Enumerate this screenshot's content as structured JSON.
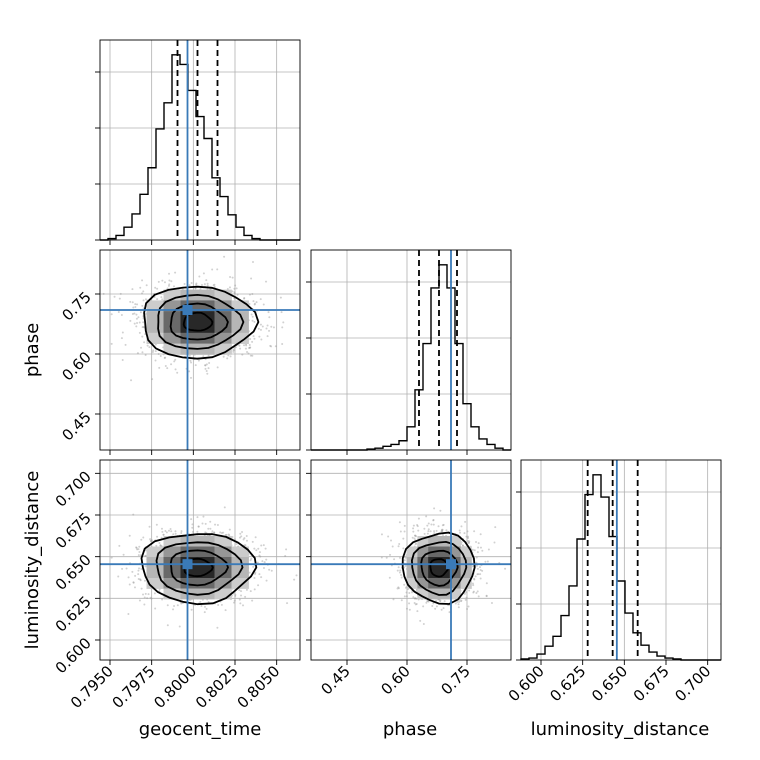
{
  "chart_data": {
    "type": "corner",
    "parameters": [
      "geocent_time",
      "phase",
      "luminosity_distance"
    ],
    "labels": {
      "geocent_time": "geocent_time",
      "phase": "phase",
      "luminosity_distance": "luminosity_distance"
    },
    "ranges": {
      "geocent_time": [
        0.7944,
        0.8064
      ],
      "phase": [
        0.36,
        0.86
      ],
      "luminosity_distance": [
        0.588,
        0.708
      ]
    },
    "ticks": {
      "geocent_time": [
        {
          "value": 0.795,
          "label": "0.7950"
        },
        {
          "value": 0.7975,
          "label": "0.7975"
        },
        {
          "value": 0.8,
          "label": "0.8000"
        },
        {
          "value": 0.8025,
          "label": "0.8025"
        },
        {
          "value": 0.805,
          "label": "0.8050"
        }
      ],
      "phase": [
        {
          "value": 0.45,
          "label": "0.45"
        },
        {
          "value": 0.6,
          "label": "0.60"
        },
        {
          "value": 0.75,
          "label": "0.75"
        }
      ],
      "luminosity_distance": [
        {
          "value": 0.6,
          "label": "0.600"
        },
        {
          "value": 0.625,
          "label": "0.625"
        },
        {
          "value": 0.65,
          "label": "0.650"
        },
        {
          "value": 0.675,
          "label": "0.675"
        },
        {
          "value": 0.7,
          "label": "0.700"
        }
      ]
    },
    "truths": {
      "geocent_time": 0.79965,
      "phase": 0.71,
      "luminosity_distance": 0.6455
    },
    "quantiles": {
      "geocent_time": [
        0.79905,
        0.80025,
        0.80145
      ],
      "phase": [
        0.63,
        0.68,
        0.725
      ],
      "luminosity_distance": [
        0.628,
        0.643,
        0.658
      ]
    },
    "histograms": {
      "geocent_time": {
        "edges": [
          0.7944,
          0.79488,
          0.79536,
          0.79584,
          0.79632,
          0.7968,
          0.79728,
          0.79776,
          0.79824,
          0.79872,
          0.7992,
          0.79968,
          0.80016,
          0.80064,
          0.80112,
          0.8016,
          0.80208,
          0.80256,
          0.80304,
          0.80352,
          0.804,
          0.80448,
          0.80496,
          0.80544,
          0.80592,
          0.8064
        ],
        "counts": [
          0,
          3,
          10,
          28,
          57,
          100,
          158,
          243,
          300,
          405,
          384,
          327,
          270,
          222,
          136,
          95,
          55,
          28,
          10,
          3,
          0,
          0,
          0,
          0,
          0
        ]
      },
      "phase": {
        "edges": [
          0.36,
          0.38,
          0.4,
          0.42,
          0.44,
          0.46,
          0.48,
          0.5,
          0.52,
          0.54,
          0.56,
          0.58,
          0.6,
          0.62,
          0.64,
          0.66,
          0.68,
          0.7,
          0.72,
          0.74,
          0.76,
          0.78,
          0.8,
          0.82,
          0.84,
          0.86
        ],
        "counts": [
          0,
          0,
          0,
          0,
          0,
          0,
          0,
          2,
          4,
          8,
          12,
          20,
          50,
          130,
          230,
          350,
          400,
          350,
          230,
          100,
          50,
          24,
          12,
          4,
          0
        ]
      },
      "luminosity_distance": {
        "edges": [
          0.588,
          0.5928,
          0.5976,
          0.6024,
          0.6072,
          0.612,
          0.6168,
          0.6216,
          0.6264,
          0.6312,
          0.636,
          0.6408,
          0.6456,
          0.6504,
          0.6552,
          0.66,
          0.6648,
          0.6696,
          0.6744,
          0.6792,
          0.684,
          0.6888,
          0.6936,
          0.6984,
          0.7032,
          0.708
        ],
        "counts": [
          2,
          4,
          12,
          28,
          48,
          90,
          150,
          245,
          335,
          375,
          330,
          250,
          160,
          95,
          55,
          30,
          16,
          8,
          4,
          2,
          0,
          0,
          0,
          0,
          0
        ]
      }
    },
    "correlations": [
      {
        "x": "geocent_time",
        "y": "phase",
        "center": [
          0.80025,
          0.68
        ],
        "sd": [
          0.0017,
          0.045
        ],
        "contour_levels": [
          0.5,
          1.0,
          1.5,
          2.0
        ]
      },
      {
        "x": "geocent_time",
        "y": "luminosity_distance",
        "center": [
          0.80025,
          0.6435
        ],
        "sd": [
          0.0017,
          0.0105
        ],
        "contour_levels": [
          0.5,
          1.0,
          1.5,
          2.0
        ]
      },
      {
        "x": "phase",
        "y": "luminosity_distance",
        "center": [
          0.68,
          0.6435
        ],
        "sd": [
          0.045,
          0.0105
        ],
        "contour_levels": [
          0.5,
          1.0,
          1.5,
          2.0
        ]
      }
    ],
    "colors": {
      "truth": "#3a7ab8",
      "contour": "#000000",
      "density": "#000000",
      "grid": "#b0b0b0"
    },
    "grid": true
  }
}
